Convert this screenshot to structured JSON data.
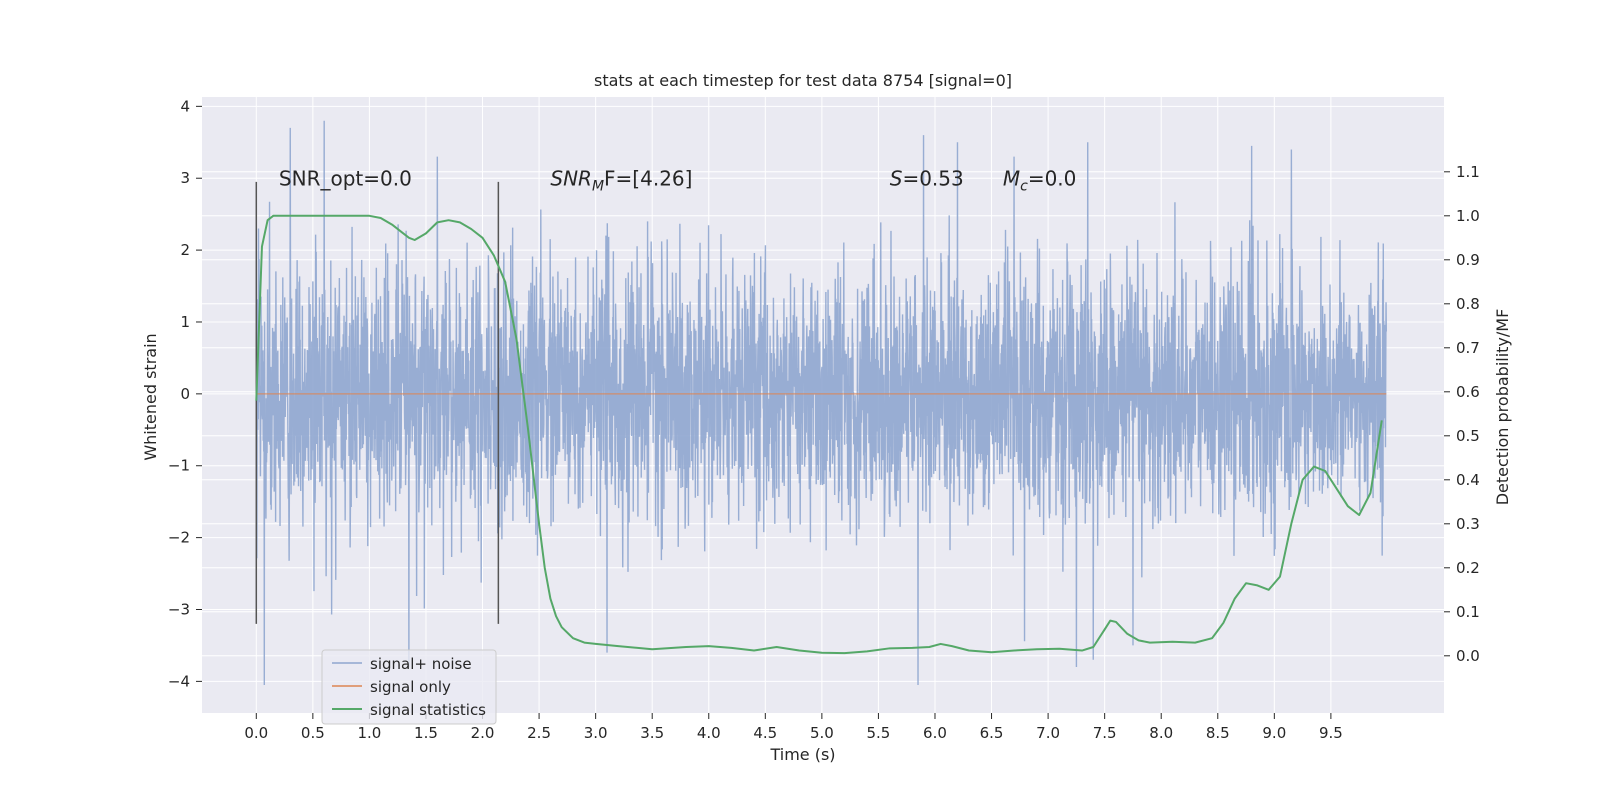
{
  "chart_data": {
    "type": "line",
    "title": "stats at each timestep for test data 8754 [signal=0]",
    "xlabel": "Time (s)",
    "ylabel": "Whitened strain",
    "ylabel_right": "Detection probability/MF",
    "xlim": [
      -0.48,
      10.5
    ],
    "ylim": [
      -4.44,
      4.13
    ],
    "ylim_right": [
      -0.13,
      1.27
    ],
    "x_ticks": [
      0.0,
      0.5,
      1.0,
      1.5,
      2.0,
      2.5,
      3.0,
      3.5,
      4.0,
      4.5,
      5.0,
      5.5,
      6.0,
      6.5,
      7.0,
      7.5,
      8.0,
      8.5,
      9.0,
      9.5
    ],
    "x_tick_labels": [
      "0.0",
      "0.5",
      "1.0",
      "1.5",
      "2.0",
      "2.5",
      "3.0",
      "3.5",
      "4.0",
      "4.5",
      "5.0",
      "5.5",
      "6.0",
      "6.5",
      "7.0",
      "7.5",
      "8.0",
      "8.5",
      "9.0",
      "9.5"
    ],
    "y_ticks": [
      -4,
      -3,
      -2,
      -1,
      0,
      1,
      2,
      3,
      4
    ],
    "y_tick_labels": [
      "−4",
      "−3",
      "−2",
      "−1",
      "0",
      "1",
      "2",
      "3",
      "4"
    ],
    "y_right_ticks": [
      0.0,
      0.1,
      0.2,
      0.3,
      0.4,
      0.5,
      0.6,
      0.7,
      0.8,
      0.9,
      1.0,
      1.1
    ],
    "y_right_tick_labels": [
      "0.0",
      "0.1",
      "0.2",
      "0.3",
      "0.4",
      "0.5",
      "0.6",
      "0.7",
      "0.8",
      "0.9",
      "1.0",
      "1.1"
    ],
    "grid": true,
    "legend_position": "lower-left",
    "colors": {
      "signal_noise": "#8fa6cf",
      "signal_only": "#dd8452",
      "signal_statistics": "#55a868",
      "window_marker": "#555555",
      "plot_background": "#eaeaf2",
      "grid": "#ffffff"
    },
    "series": [
      {
        "name": "signal+ noise",
        "axis": "left",
        "x_range": [
          0.0,
          9.99
        ],
        "envelope": {
          "typical_abs": 1.7,
          "max": 3.8,
          "min": -4.05,
          "peaks_upper": [
            {
              "x": 0.02,
              "y": 2.3
            },
            {
              "x": 0.3,
              "y": 3.7
            },
            {
              "x": 0.6,
              "y": 3.8
            },
            {
              "x": 1.35,
              "y": 3.2
            },
            {
              "x": 1.6,
              "y": 3.3
            },
            {
              "x": 5.9,
              "y": 3.6
            },
            {
              "x": 6.2,
              "y": 3.5
            },
            {
              "x": 6.7,
              "y": 3.3
            },
            {
              "x": 7.35,
              "y": 3.5
            },
            {
              "x": 8.8,
              "y": 3.45
            },
            {
              "x": 9.15,
              "y": 3.4
            }
          ],
          "peaks_lower": [
            {
              "x": 0.07,
              "y": -4.05
            },
            {
              "x": 1.35,
              "y": -3.8
            },
            {
              "x": 3.1,
              "y": -3.6
            },
            {
              "x": 5.85,
              "y": -4.05
            },
            {
              "x": 7.25,
              "y": -3.8
            },
            {
              "x": 7.4,
              "y": -3.7
            },
            {
              "x": 7.75,
              "y": -3.5
            }
          ]
        }
      },
      {
        "name": "signal only",
        "axis": "left",
        "x": [
          0.0,
          9.99
        ],
        "y": [
          0.0,
          0.0
        ]
      },
      {
        "name": "signal statistics",
        "axis": "right",
        "x": [
          0.0,
          0.05,
          0.1,
          0.15,
          0.2,
          0.3,
          0.5,
          0.8,
          1.0,
          1.1,
          1.2,
          1.3,
          1.35,
          1.4,
          1.5,
          1.6,
          1.7,
          1.8,
          1.9,
          2.0,
          2.1,
          2.2,
          2.3,
          2.4,
          2.5,
          2.55,
          2.6,
          2.65,
          2.7,
          2.8,
          2.9,
          3.0,
          3.2,
          3.5,
          3.8,
          4.0,
          4.2,
          4.4,
          4.6,
          4.8,
          5.0,
          5.2,
          5.4,
          5.6,
          5.8,
          5.95,
          6.05,
          6.15,
          6.3,
          6.5,
          6.7,
          6.9,
          7.1,
          7.3,
          7.4,
          7.5,
          7.55,
          7.6,
          7.7,
          7.8,
          7.9,
          8.1,
          8.3,
          8.45,
          8.55,
          8.65,
          8.75,
          8.85,
          8.95,
          9.05,
          9.15,
          9.25,
          9.35,
          9.45,
          9.55,
          9.65,
          9.75,
          9.85,
          9.95
        ],
        "y": [
          0.58,
          0.93,
          0.99,
          1.0,
          1.0,
          1.0,
          1.0,
          1.0,
          1.0,
          0.995,
          0.98,
          0.96,
          0.95,
          0.945,
          0.96,
          0.985,
          0.99,
          0.985,
          0.97,
          0.95,
          0.91,
          0.85,
          0.72,
          0.52,
          0.3,
          0.2,
          0.13,
          0.09,
          0.065,
          0.04,
          0.03,
          0.027,
          0.022,
          0.015,
          0.02,
          0.022,
          0.018,
          0.012,
          0.02,
          0.012,
          0.007,
          0.006,
          0.01,
          0.017,
          0.018,
          0.02,
          0.027,
          0.022,
          0.012,
          0.008,
          0.012,
          0.015,
          0.016,
          0.012,
          0.02,
          0.06,
          0.08,
          0.077,
          0.05,
          0.035,
          0.03,
          0.032,
          0.03,
          0.04,
          0.075,
          0.13,
          0.165,
          0.16,
          0.15,
          0.18,
          0.3,
          0.4,
          0.43,
          0.42,
          0.38,
          0.34,
          0.32,
          0.37,
          0.535
        ]
      }
    ],
    "vertical_lines": [
      {
        "x": 0.0,
        "y_range": [
          -3.2,
          2.95
        ]
      },
      {
        "x": 2.14,
        "y_range": [
          -3.2,
          2.95
        ]
      }
    ],
    "annotations": [
      {
        "text": "SNR_opt=0.0",
        "x": 0.2,
        "y": 2.9,
        "italic": false
      },
      {
        "text": "SNR",
        "sub": "M",
        "suffix": "F=[4.26]",
        "x": 2.6,
        "y": 2.9,
        "italic": true
      },
      {
        "text": "S",
        "suffix": "=0.53",
        "x": 5.6,
        "y": 2.9,
        "italic": true
      },
      {
        "text": "M",
        "sub": "c",
        "suffix": "=0.0",
        "x": 6.6,
        "y": 2.9,
        "italic": true
      }
    ]
  }
}
